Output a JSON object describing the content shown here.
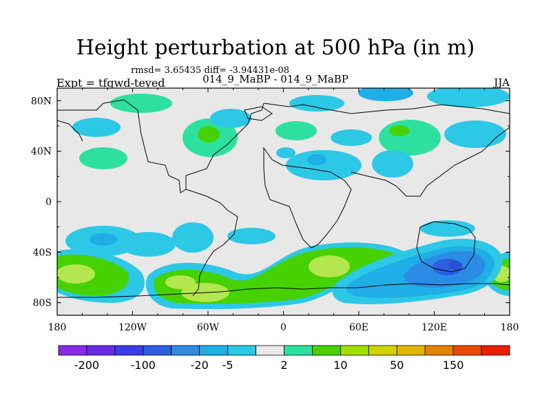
{
  "title": "Height perturbation at 500 hPa (in m)",
  "subtitle": "rmsd= 3.65435 diff= -3.94431e-08",
  "center_string": "014_9_MaBP - 014_9_MaBP",
  "left_string": "Expt = tfgwd-teyed",
  "right_string": "JJA",
  "lat_ticks": [
    "80N",
    "40N",
    "0",
    "40S",
    "80S"
  ],
  "lon_ticks": [
    "180",
    "120W",
    "60W",
    "0",
    "60E",
    "120E",
    "180"
  ],
  "colorbar": {
    "labels": [
      "-200",
      "-100",
      "-20",
      "-5",
      "2",
      "10",
      "50",
      "150"
    ],
    "colors": [
      "#8a2be2",
      "#6a2ce0",
      "#3c3ce6",
      "#2b5fe0",
      "#2c8ce6",
      "#1faee6",
      "#2cc8e6",
      "#e8e8e8",
      "#2ee0a0",
      "#46d200",
      "#a0e000",
      "#d2d200",
      "#e6b400",
      "#e68200",
      "#e64b00",
      "#e62000"
    ]
  },
  "palette": {
    "background": "#e8e8e8",
    "lightblue": "#2cc8e6",
    "medblue": "#1faee6",
    "blue": "#2b8ce6",
    "darkblue": "#2b5fe0",
    "teal": "#2ee0a0",
    "green": "#46d200",
    "yellowgreen": "#b4e650"
  }
}
